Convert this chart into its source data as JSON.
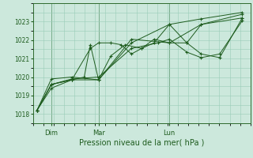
{
  "xlabel": "Pression niveau de la mer( hPa )",
  "bg_color": "#cce8dc",
  "grid_color": "#99ccb8",
  "line_color": "#1e5c1e",
  "tick_color": "#1e5c1e",
  "border_color": "#2d6a2d",
  "ylim": [
    1017.7,
    1023.8
  ],
  "yticks": [
    1018,
    1019,
    1020,
    1021,
    1022,
    1023
  ],
  "xtick_labels": [
    "Dim",
    "Mar",
    "Lun"
  ],
  "xtick_positions": [
    0.07,
    0.3,
    0.645
  ],
  "xlim": [
    -0.02,
    1.04
  ],
  "series": [
    {
      "x": [
        0.0,
        0.07,
        0.17,
        0.3,
        0.46,
        0.645,
        0.8,
        1.0
      ],
      "y": [
        1018.2,
        1019.4,
        1019.85,
        1019.85,
        1021.85,
        1022.85,
        1023.15,
        1023.5
      ]
    },
    {
      "x": [
        0.0,
        0.07,
        0.17,
        0.3,
        0.46,
        0.645,
        0.8,
        1.0
      ],
      "y": [
        1018.2,
        1019.9,
        1020.0,
        1019.85,
        1022.05,
        1021.85,
        1022.85,
        1023.4
      ]
    },
    {
      "x": [
        0.0,
        0.07,
        0.17,
        0.26,
        0.3,
        0.36,
        0.41,
        0.46,
        0.51,
        0.57,
        0.645,
        0.73,
        0.8,
        1.0
      ],
      "y": [
        1018.2,
        1019.6,
        1019.85,
        1021.55,
        1021.85,
        1021.85,
        1021.75,
        1021.25,
        1021.55,
        1022.05,
        1021.85,
        1021.85,
        1022.85,
        1023.2
      ]
    },
    {
      "x": [
        0.0,
        0.07,
        0.17,
        0.23,
        0.26,
        0.3,
        0.36,
        0.43,
        0.51,
        0.57,
        0.645,
        0.73,
        0.8,
        0.89,
        1.0
      ],
      "y": [
        1018.2,
        1019.6,
        1019.85,
        1020.0,
        1021.75,
        1019.85,
        1021.15,
        1021.75,
        1021.55,
        1021.85,
        1022.85,
        1021.85,
        1021.25,
        1021.05,
        1023.2
      ]
    },
    {
      "x": [
        0.0,
        0.07,
        0.17,
        0.3,
        0.46,
        0.59,
        0.645,
        0.73,
        0.8,
        0.89,
        1.0
      ],
      "y": [
        1018.2,
        1019.6,
        1019.9,
        1020.0,
        1021.55,
        1021.85,
        1022.05,
        1021.35,
        1021.05,
        1021.25,
        1023.05
      ]
    }
  ]
}
